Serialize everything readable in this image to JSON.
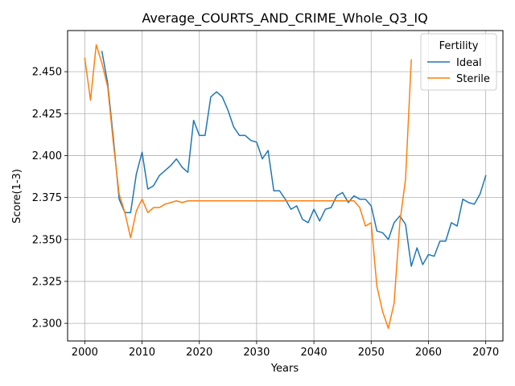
{
  "chart_data": {
    "type": "line",
    "title": "Average_COURTS_AND_CRIME_Whole_Q3_IQ",
    "xlabel": "Years",
    "ylabel": "Score(1-3)",
    "xlim": [
      1997,
      2073
    ],
    "ylim": [
      2.2895,
      2.4745
    ],
    "xticks": [
      2000,
      2010,
      2020,
      2030,
      2040,
      2050,
      2060,
      2070
    ],
    "yticks": [
      2.3,
      2.325,
      2.35,
      2.375,
      2.4,
      2.425,
      2.45
    ],
    "ytick_labels": [
      "2.300",
      "2.325",
      "2.350",
      "2.375",
      "2.400",
      "2.425",
      "2.450"
    ],
    "grid": true,
    "legend": {
      "title": "Fertility",
      "position": "top-right"
    },
    "series": [
      {
        "name": "Ideal",
        "color": "#1f77b4",
        "x": [
          2003,
          2004,
          2005,
          2006,
          2007,
          2008,
          2009,
          2010,
          2011,
          2012,
          2013,
          2014,
          2015,
          2016,
          2017,
          2018,
          2019,
          2020,
          2021,
          2022,
          2023,
          2024,
          2025,
          2026,
          2027,
          2028,
          2029,
          2030,
          2031,
          2032,
          2033,
          2034,
          2035,
          2036,
          2037,
          2038,
          2039,
          2040,
          2041,
          2042,
          2043,
          2044,
          2045,
          2046,
          2047,
          2048,
          2049,
          2050,
          2051,
          2052,
          2053,
          2054,
          2055,
          2056,
          2057,
          2058,
          2059,
          2060,
          2061,
          2062,
          2063,
          2064,
          2065,
          2066,
          2067,
          2068,
          2069,
          2070
        ],
        "y": [
          2.462,
          2.443,
          2.41,
          2.374,
          2.366,
          2.366,
          2.389,
          2.402,
          2.38,
          2.382,
          2.388,
          2.391,
          2.394,
          2.398,
          2.393,
          2.39,
          2.421,
          2.412,
          2.412,
          2.435,
          2.438,
          2.435,
          2.427,
          2.417,
          2.412,
          2.412,
          2.409,
          2.408,
          2.398,
          2.403,
          2.379,
          2.379,
          2.374,
          2.368,
          2.37,
          2.362,
          2.36,
          2.368,
          2.361,
          2.368,
          2.369,
          2.376,
          2.378,
          2.372,
          2.376,
          2.374,
          2.374,
          2.37,
          2.355,
          2.354,
          2.35,
          2.36,
          2.364,
          2.359,
          2.334,
          2.345,
          2.335,
          2.341,
          2.34,
          2.349,
          2.349,
          2.36,
          2.358,
          2.374,
          2.372,
          2.371,
          2.377,
          2.388
        ]
      },
      {
        "name": "Sterile",
        "color": "#ff7f0e",
        "x": [
          2000,
          2001,
          2002,
          2003,
          2004,
          2005,
          2006,
          2007,
          2008,
          2009,
          2010,
          2011,
          2012,
          2013,
          2014,
          2015,
          2016,
          2017,
          2018,
          2019,
          2020,
          2021,
          2022,
          2023,
          2024,
          2025,
          2026,
          2027,
          2028,
          2029,
          2030,
          2031,
          2032,
          2033,
          2034,
          2035,
          2036,
          2037,
          2038,
          2039,
          2040,
          2041,
          2042,
          2043,
          2044,
          2045,
          2046,
          2047,
          2048,
          2049,
          2050,
          2051,
          2052,
          2053,
          2054,
          2055,
          2056,
          2057
        ],
        "y": [
          2.458,
          2.433,
          2.466,
          2.455,
          2.441,
          2.407,
          2.377,
          2.366,
          2.351,
          2.367,
          2.374,
          2.366,
          2.369,
          2.369,
          2.371,
          2.372,
          2.373,
          2.372,
          2.373,
          2.373,
          2.373,
          2.373,
          2.373,
          2.373,
          2.373,
          2.373,
          2.373,
          2.373,
          2.373,
          2.373,
          2.373,
          2.373,
          2.373,
          2.373,
          2.373,
          2.373,
          2.373,
          2.373,
          2.373,
          2.373,
          2.373,
          2.373,
          2.373,
          2.373,
          2.373,
          2.373,
          2.373,
          2.373,
          2.369,
          2.358,
          2.36,
          2.322,
          2.307,
          2.297,
          2.312,
          2.36,
          2.386,
          2.457
        ]
      }
    ]
  }
}
